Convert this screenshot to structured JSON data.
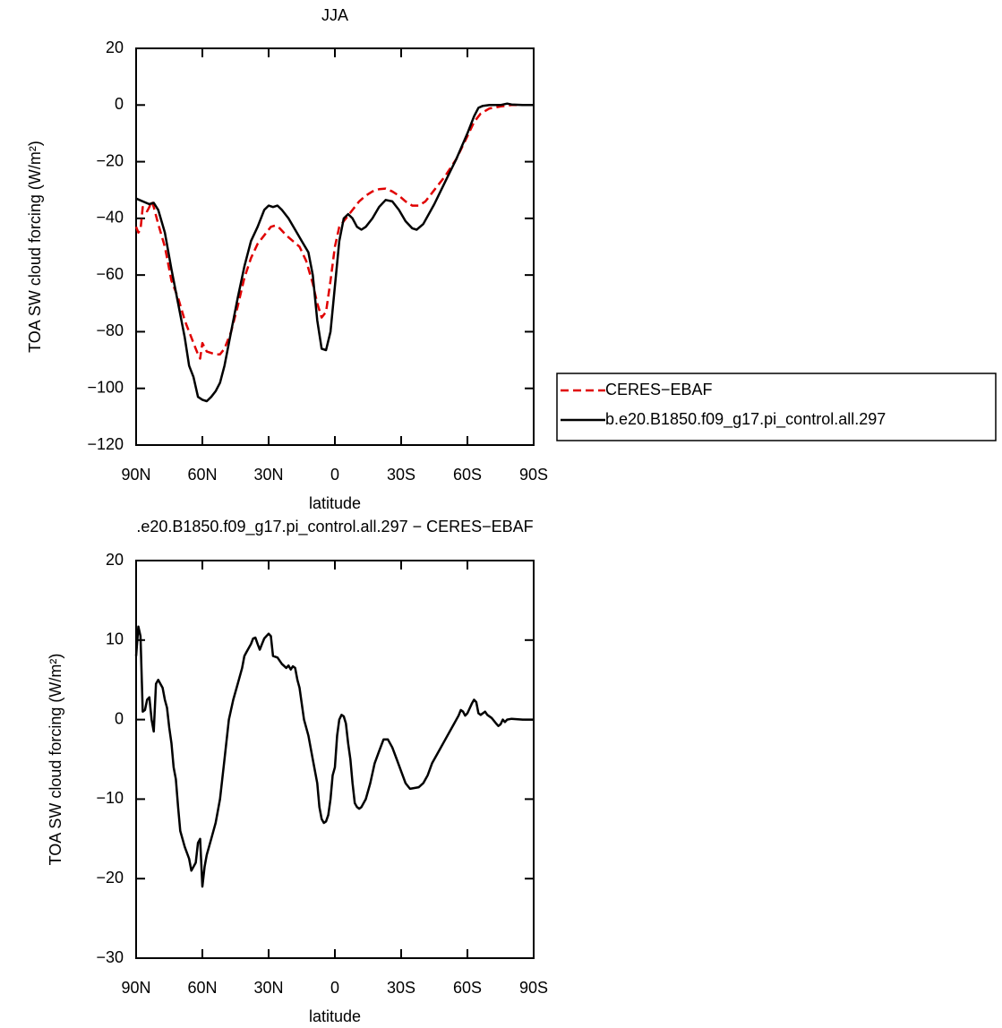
{
  "chart_data": [
    {
      "type": "line",
      "title": "JJA",
      "x_label": "latitude",
      "y_label": "TOA SW cloud forcing (W/m²)",
      "legend": "right",
      "xlim": [
        90,
        -90
      ],
      "ylim": [
        -120,
        20
      ],
      "xticks": [
        {
          "value": 90,
          "label": "90N"
        },
        {
          "value": 60,
          "label": "60N"
        },
        {
          "value": 30,
          "label": "30N"
        },
        0,
        {
          "value": -30,
          "label": "30S"
        },
        {
          "value": -60,
          "label": "60S"
        },
        {
          "value": -90,
          "label": "90S"
        }
      ],
      "yticks": [
        {
          "value": -120,
          "label": "−120"
        },
        {
          "value": -100,
          "label": "−100"
        },
        {
          "value": -80,
          "label": "−80"
        },
        {
          "value": -60,
          "label": "−60"
        },
        {
          "value": -40,
          "label": "−40"
        },
        {
          "value": -20,
          "label": "−20"
        },
        0,
        20
      ],
      "series": [
        {
          "name": "CERES−EBAF",
          "color": "#e00000",
          "dash": true,
          "x": [
            90,
            89,
            88,
            87,
            86,
            85,
            84,
            83,
            82,
            80,
            77,
            74,
            71,
            68,
            66,
            64,
            62,
            61,
            60,
            58,
            56,
            54,
            52,
            50,
            47,
            44,
            41,
            38,
            35,
            32,
            29,
            27,
            25,
            22,
            19,
            16,
            13,
            10,
            8,
            6,
            4,
            2,
            0,
            -2,
            -4,
            -6,
            -8,
            -11,
            -14,
            -17,
            -20,
            -23,
            -26,
            -29,
            -32,
            -35,
            -38,
            -41,
            -45,
            -50,
            -55,
            -60,
            -63,
            -66,
            -70,
            -75,
            -80,
            -85,
            -90
          ],
          "values": [
            -43,
            -45,
            -44,
            -36,
            -37,
            -37.5,
            -36,
            -34,
            -36,
            -42,
            -50,
            -62,
            -68,
            -76,
            -80,
            -84,
            -88,
            -89.5,
            -84,
            -87,
            -87.5,
            -88,
            -88,
            -86,
            -80,
            -71,
            -61,
            -54,
            -49,
            -46,
            -43,
            -42.5,
            -43.5,
            -46,
            -48,
            -50,
            -55,
            -63,
            -70,
            -75,
            -73,
            -62,
            -50,
            -43,
            -41,
            -39,
            -37,
            -34,
            -32,
            -30.5,
            -29.7,
            -29.5,
            -30.5,
            -32,
            -34,
            -35.5,
            -35.5,
            -34,
            -30,
            -25,
            -19,
            -11,
            -6,
            -3,
            -1.2,
            -0.5,
            0,
            0,
            0
          ]
        },
        {
          "name": "b.e20.B1850.f09_g17.pi_control.all.297",
          "color": "#000000",
          "dash": false,
          "x": [
            90,
            87,
            84,
            82,
            80,
            77,
            74,
            71,
            68,
            66,
            64,
            62,
            60,
            58,
            56,
            54,
            52,
            50,
            47,
            44,
            41,
            38,
            35,
            32,
            30,
            28,
            26,
            24,
            21,
            18,
            15,
            12,
            10,
            8,
            6,
            4,
            2,
            0,
            -2,
            -4,
            -6,
            -8,
            -10,
            -12,
            -14,
            -17,
            -20,
            -23,
            -26,
            -29,
            -32,
            -35,
            -37,
            -40,
            -45,
            -50,
            -55,
            -60,
            -63,
            -65,
            -67,
            -70,
            -75,
            -78,
            -80,
            -85,
            -90
          ],
          "values": [
            -33,
            -34,
            -35,
            -34.5,
            -37,
            -45,
            -58,
            -70,
            -82,
            -92,
            -96,
            -103,
            -104,
            -104.5,
            -103,
            -101,
            -98,
            -92,
            -80,
            -68,
            -57,
            -48,
            -43,
            -37,
            -35.5,
            -36,
            -35.5,
            -37,
            -40,
            -44,
            -48,
            -52,
            -60,
            -76,
            -86,
            -86.5,
            -80,
            -64,
            -48,
            -40,
            -38.5,
            -40,
            -43,
            -44,
            -43,
            -40,
            -36,
            -33.5,
            -34,
            -37,
            -41,
            -43.5,
            -44,
            -42,
            -35,
            -27,
            -19,
            -10,
            -4,
            -1,
            -0.3,
            0,
            0,
            0.5,
            0.2,
            0,
            0
          ]
        }
      ]
    },
    {
      "type": "line",
      "title": ".e20.B1850.f09_g17.pi_control.all.297 − CERES−EBAF",
      "x_label": "latitude",
      "y_label": "TOA SW cloud forcing (W/m²)",
      "xlim": [
        90,
        -90
      ],
      "ylim": [
        -30,
        20
      ],
      "xticks": [
        {
          "value": 90,
          "label": "90N"
        },
        {
          "value": 60,
          "label": "60N"
        },
        {
          "value": 30,
          "label": "30N"
        },
        0,
        {
          "value": -30,
          "label": "30S"
        },
        {
          "value": -60,
          "label": "60S"
        },
        {
          "value": -90,
          "label": "90S"
        }
      ],
      "yticks": [
        {
          "value": -30,
          "label": "−30"
        },
        {
          "value": -20,
          "label": "−20"
        },
        {
          "value": -10,
          "label": "−10"
        },
        0,
        10,
        20
      ],
      "series": [
        {
          "color": "#000000",
          "dash": false,
          "x": [
            90,
            89,
            88,
            87,
            86,
            85,
            84,
            83,
            82,
            81,
            80,
            79,
            78,
            77,
            76,
            75,
            74,
            73,
            72,
            71,
            70,
            68,
            66,
            65,
            63,
            62,
            61,
            60,
            59,
            58,
            56,
            54,
            52,
            50,
            48,
            46,
            44,
            42,
            41,
            40,
            38,
            37,
            36,
            35,
            34,
            33,
            32,
            31,
            30,
            29,
            28,
            26,
            24,
            22,
            21,
            20,
            19,
            18,
            17,
            16,
            14,
            12,
            10,
            8,
            7,
            6,
            5,
            4,
            3,
            2,
            1,
            0,
            -1,
            -2,
            -3,
            -4,
            -5,
            -6,
            -7,
            -8,
            -9,
            -10,
            -11,
            -12,
            -14,
            -16,
            -18,
            -20,
            -22,
            -24,
            -26,
            -28,
            -30,
            -32,
            -34,
            -36,
            -38,
            -40,
            -42,
            -44,
            -47,
            -50,
            -53,
            -56,
            -57,
            -58,
            -59,
            -60,
            -62,
            -63,
            -64,
            -65,
            -66,
            -67,
            -68,
            -69,
            -71,
            -73,
            -74,
            -75,
            -76,
            -77,
            -78,
            -80,
            -85,
            -90
          ],
          "values": [
            8,
            11.7,
            10.5,
            1,
            1.2,
            2.5,
            2.8,
            0,
            -1.5,
            4.5,
            5,
            4.5,
            4,
            2.5,
            1.5,
            -1,
            -3,
            -6,
            -7.5,
            -11,
            -14,
            -16,
            -17.5,
            -19,
            -18,
            -15.5,
            -15,
            -21,
            -18.5,
            -17,
            -15,
            -13,
            -10,
            -5,
            0,
            2.5,
            4.5,
            6.5,
            8,
            8.5,
            9.5,
            10.2,
            10.3,
            9.5,
            8.8,
            9.5,
            10.2,
            10.5,
            10.8,
            10.5,
            8,
            7.8,
            7,
            6.5,
            6.8,
            6.3,
            6.7,
            6.5,
            5,
            4,
            0,
            -2,
            -5,
            -8,
            -11,
            -12.5,
            -13,
            -12.8,
            -12,
            -10,
            -7,
            -6,
            -2,
            0,
            0.6,
            0.4,
            -0.5,
            -3,
            -5,
            -8,
            -10.5,
            -11,
            -11.2,
            -11,
            -10,
            -8,
            -5.5,
            -4,
            -2.5,
            -2.5,
            -3.5,
            -5,
            -6.5,
            -8,
            -8.7,
            -8.6,
            -8.5,
            -8,
            -7,
            -5.5,
            -4,
            -2.5,
            -1,
            0.5,
            1.2,
            1,
            0.5,
            0.8,
            2,
            2.5,
            2.2,
            0.8,
            0.6,
            0.8,
            1,
            0.6,
            0.2,
            -0.5,
            -0.8,
            -0.6,
            0,
            -0.3,
            0,
            0.1,
            0,
            0
          ]
        }
      ]
    }
  ]
}
